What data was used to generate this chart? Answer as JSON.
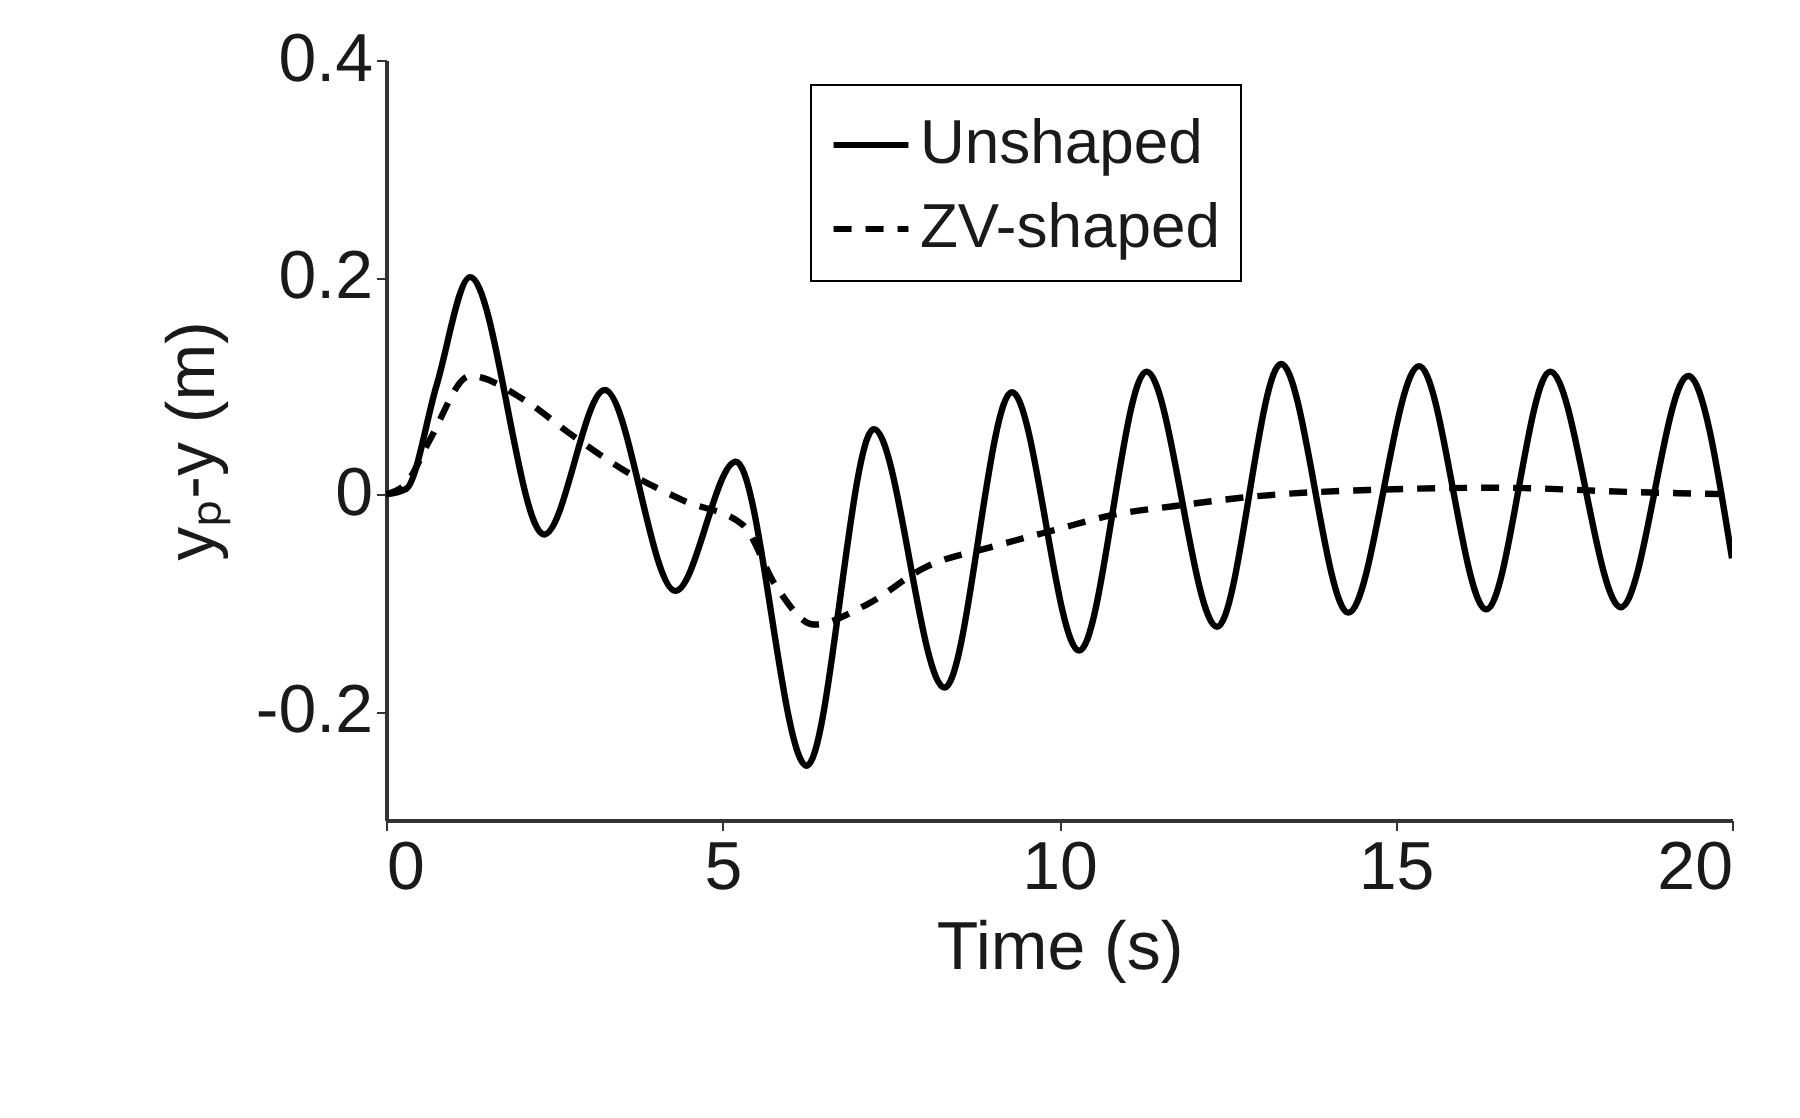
{
  "chart_data": {
    "type": "line",
    "xlabel": "Time (s)",
    "ylabel": "yₚ-y (m)",
    "xlim": [
      0,
      20
    ],
    "xticks": [
      0,
      5,
      10,
      15,
      20
    ],
    "ylim": [
      -0.3,
      0.4
    ],
    "yticks": [
      -0.2,
      0,
      0.2,
      0.4
    ],
    "grid": false,
    "legend": "top right",
    "marker": "none",
    "series": [
      {
        "name": "Unshaped",
        "color": "#000000",
        "line_style": "solid",
        "x": [
          0,
          0.3,
          0.75,
          1.25,
          2.35,
          3.25,
          4.3,
          5.2,
          6.25,
          7.25,
          8.3,
          9.3,
          10.3,
          11.3,
          12.35,
          13.3,
          14.3,
          15.35,
          16.35,
          17.3,
          18.35,
          19.35,
          20
        ],
        "values": [
          0,
          0.005,
          0.1,
          0.2,
          -0.037,
          0.096,
          -0.089,
          0.03,
          -0.25,
          0.06,
          -0.178,
          0.094,
          -0.144,
          0.113,
          -0.122,
          0.12,
          -0.109,
          0.118,
          -0.106,
          0.113,
          -0.104,
          0.109,
          -0.059
        ]
      },
      {
        "name": "ZV-shaped",
        "color": "#000000",
        "line_style": "dashed",
        "x": [
          0,
          0.3,
          0.65,
          1.25,
          2.05,
          2.73,
          3.54,
          4.43,
          5.3,
          5.8,
          6.36,
          7.13,
          8.02,
          9.03,
          9.93,
          10.8,
          11.7,
          12.9,
          14.6,
          16.55,
          18.55,
          20
        ],
        "values": [
          0,
          0.01,
          0.05,
          0.109,
          0.087,
          0.056,
          0.022,
          -0.006,
          -0.028,
          -0.085,
          -0.12,
          -0.102,
          -0.067,
          -0.048,
          -0.033,
          -0.019,
          -0.011,
          -0.002,
          0.004,
          0.006,
          0.002,
          0
        ]
      }
    ]
  }
}
